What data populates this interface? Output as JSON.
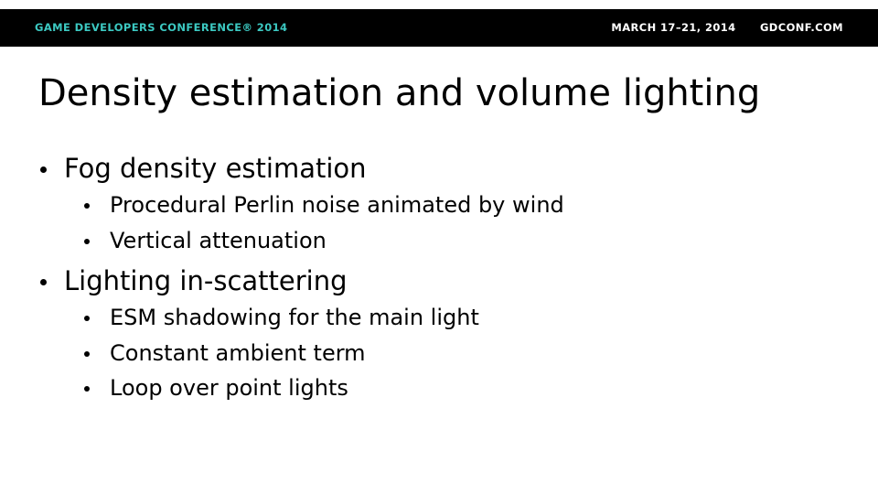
{
  "header": {
    "conference": "GAME DEVELOPERS CONFERENCE® 2014",
    "dates": "MARCH 17–21, 2014",
    "website": "GDCONF.COM",
    "accent_color": "#3cc9c2",
    "bar_color": "#000000"
  },
  "slide": {
    "title": "Density estimation and volume lighting",
    "bullets": [
      {
        "text": "Fog density estimation",
        "children": [
          "Procedural Perlin noise animated by wind",
          "Vertical attenuation"
        ]
      },
      {
        "text": "Lighting in-scattering",
        "children": [
          "ESM shadowing for the main light",
          "Constant ambient term",
          "Loop over point lights"
        ]
      }
    ]
  }
}
